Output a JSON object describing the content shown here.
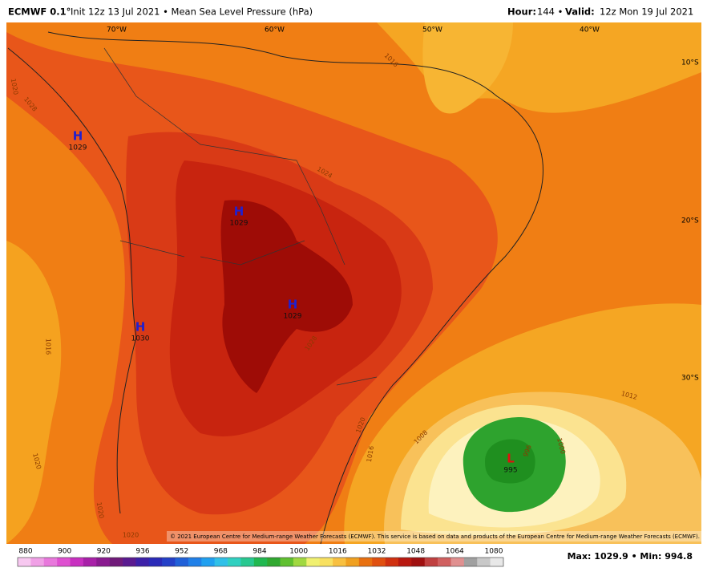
{
  "header": {
    "model": "ECMWF 0.1°",
    "info": "Init 12z 13 Jul 2021 • Mean Sea Level Pressure (hPa)",
    "hour_label": "Hour:",
    "hour": "144 •",
    "valid_label": "Valid:",
    "valid": "12z Mon 19 Jul 2021"
  },
  "longitudes": [
    "70°W",
    "60°W",
    "50°W",
    "40°W"
  ],
  "latitudes": [
    "10°S",
    "20°S",
    "30°S"
  ],
  "centers": [
    {
      "letter": "H",
      "value": "1029"
    },
    {
      "letter": "H",
      "value": "1029"
    },
    {
      "letter": "H",
      "value": "1029"
    },
    {
      "letter": "H",
      "value": "1030"
    },
    {
      "letter": "L",
      "value": "995"
    }
  ],
  "isobars": [
    "1020",
    "1028",
    "1016",
    "1024",
    "1028",
    "1016",
    "1020",
    "1020",
    "1020",
    "1012",
    "1008",
    "1020",
    "1016",
    "1000",
    "996"
  ],
  "copyright": "© 2021 European Centre for Medium-range Weather Forecasts (ECMWF). This service is based on data and products of the European Centre for Medium-range Weather Forecasts (ECMWF).",
  "colorbar": [
    "880",
    "900",
    "920",
    "936",
    "952",
    "968",
    "984",
    "1000",
    "1016",
    "1032",
    "1048",
    "1064",
    "1080"
  ],
  "stats": "Max: 1029.9 • Min: 994.8"
}
